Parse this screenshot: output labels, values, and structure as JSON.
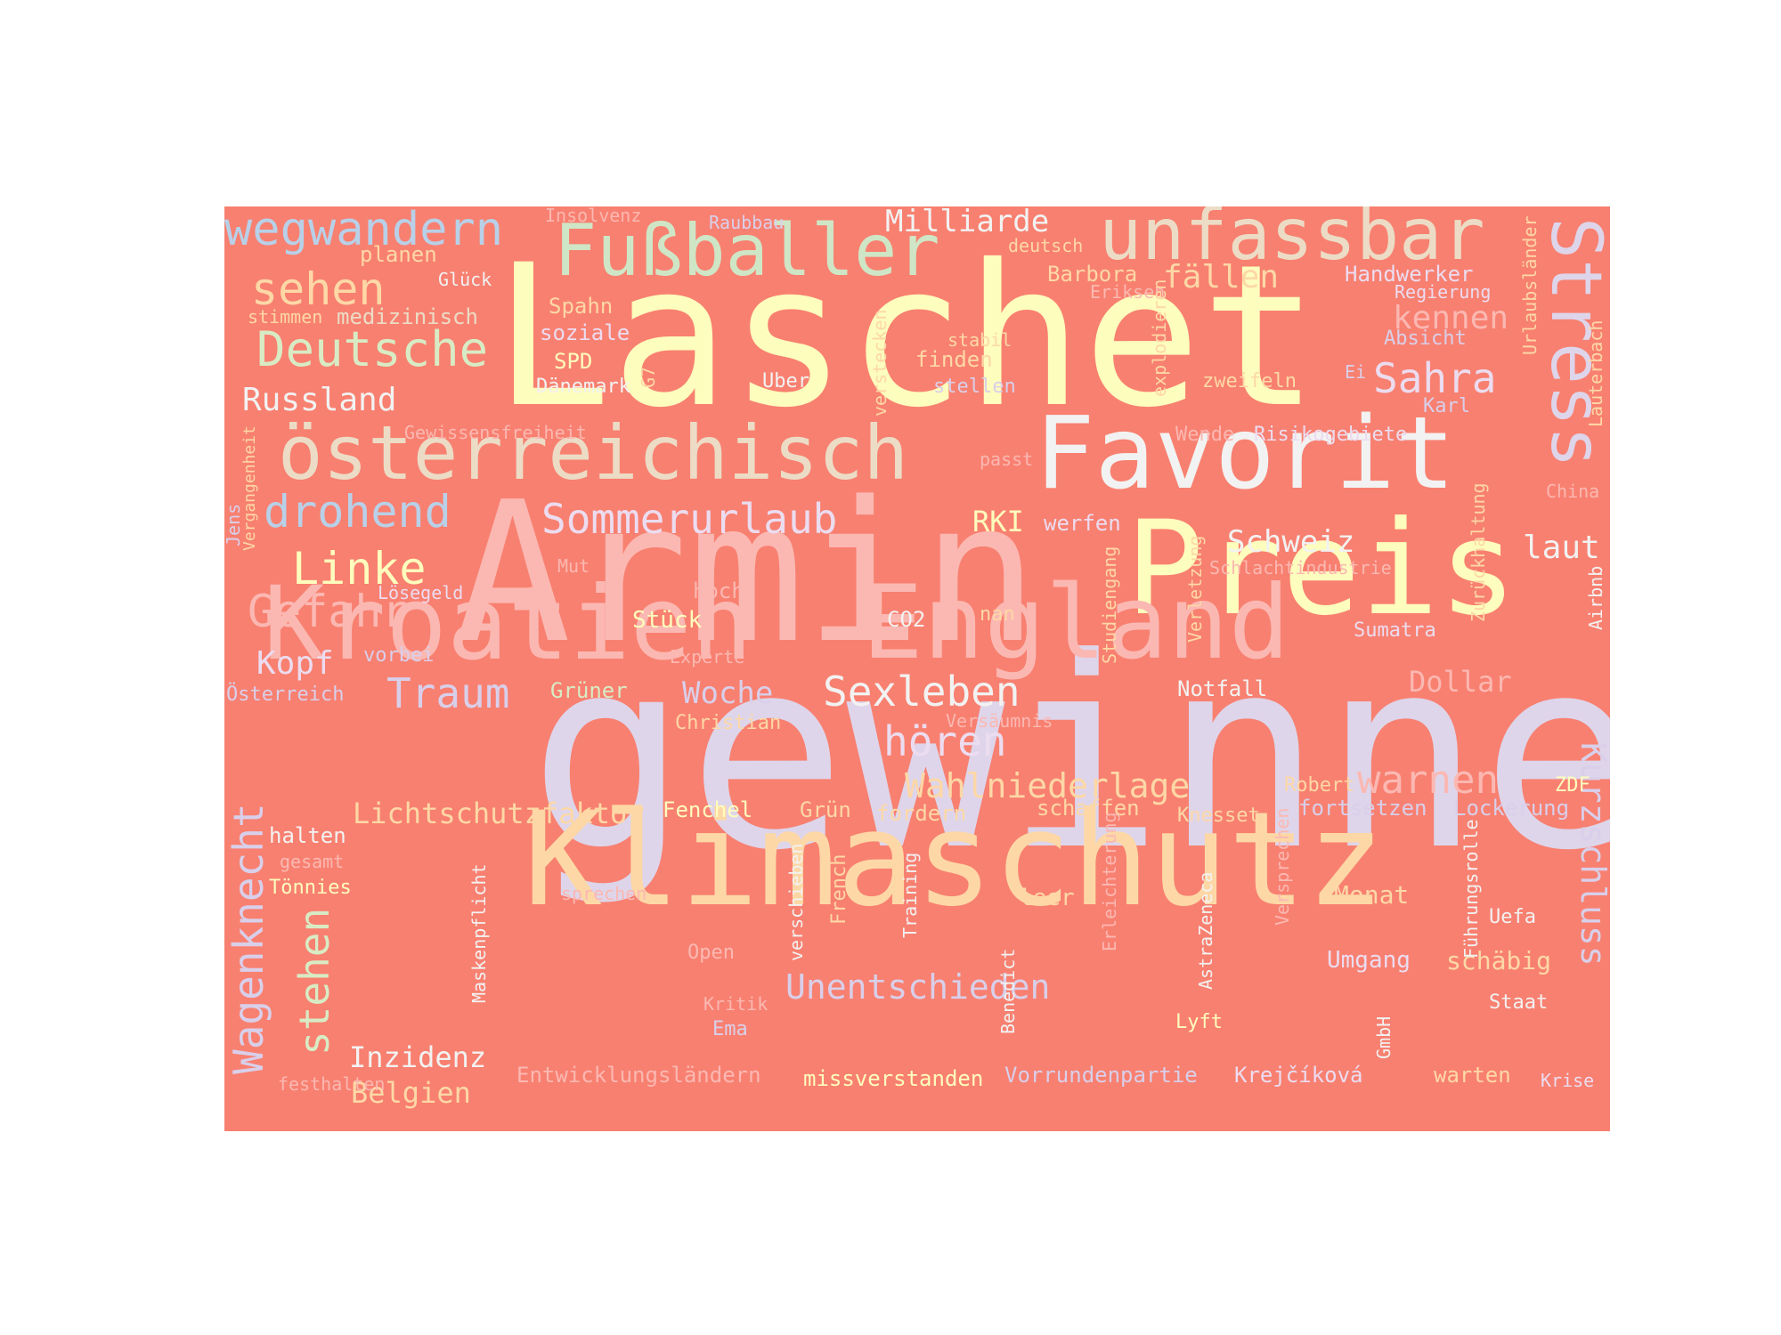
{
  "colors": {
    "background": "#ffffff",
    "cloud_background": "#f88070"
  },
  "words": [
    {
      "text": "gewinnen",
      "color": "#ded5ea"
    },
    {
      "text": "Laschet",
      "color": "#fdfdbd"
    },
    {
      "text": "Armin",
      "color": "#fbb8b2"
    },
    {
      "text": "Klimaschutz",
      "color": "#fdd8a6"
    },
    {
      "text": "Preis",
      "color": "#fdfdbd"
    },
    {
      "text": "Kroatien",
      "color": "#fbb8b2"
    },
    {
      "text": "England",
      "color": "#fbb8b2"
    },
    {
      "text": "Favorit",
      "color": "#f2f2f2"
    },
    {
      "text": "österreichisch",
      "color": "#ecdcc6"
    },
    {
      "text": "unfassbar",
      "color": "#ecdcc6"
    },
    {
      "text": "Fußballer",
      "color": "#cfe6c6"
    },
    {
      "text": "Stress",
      "color": "#ded5ea"
    },
    {
      "text": "wegwandern",
      "color": "#b8d0e8"
    },
    {
      "text": "Deutsche",
      "color": "#d8ebc4"
    },
    {
      "text": "sehen",
      "color": "#fdd8a6"
    },
    {
      "text": "drohend",
      "color": "#b8d0e8"
    },
    {
      "text": "Linke",
      "color": "#fdfdbd"
    },
    {
      "text": "Gefahr",
      "color": "#fbb8b2"
    },
    {
      "text": "Sommerurlaub",
      "color": "#ecdcf0"
    },
    {
      "text": "Sahra",
      "color": "#ecdcf0"
    },
    {
      "text": "Sexleben",
      "color": "#f2f2f2"
    },
    {
      "text": "Traum",
      "color": "#d9cfea"
    },
    {
      "text": "hören",
      "color": "#ecdcf0"
    },
    {
      "text": "Wahlniederlage",
      "color": "#fdd8a6"
    },
    {
      "text": "warnen",
      "color": "#fbb8b2"
    },
    {
      "text": "Wagenknecht",
      "color": "#d9cfea"
    },
    {
      "text": "stehen",
      "color": "#d8ebc4"
    },
    {
      "text": "Unentschieden",
      "color": "#d9cfea"
    },
    {
      "text": "Kurzschluss",
      "color": "#d9cfea"
    },
    {
      "text": "Russland",
      "color": "#f2f2f2"
    },
    {
      "text": "Milliarde",
      "color": "#f2f2f2"
    },
    {
      "text": "fällen",
      "color": "#fdd8a6"
    },
    {
      "text": "kennen",
      "color": "#fbb8b2"
    },
    {
      "text": "Schweiz",
      "color": "#f2f2f2"
    },
    {
      "text": "laut",
      "color": "#f2f2f2"
    },
    {
      "text": "Kopf",
      "color": "#ecdcf0"
    },
    {
      "text": "Woche",
      "color": "#d9cfea"
    },
    {
      "text": "Dollar",
      "color": "#fbb8b2"
    },
    {
      "text": "Lichtschutzfaktor",
      "color": "#fdd8a6"
    },
    {
      "text": "Inzidenz",
      "color": "#f2f2f2"
    },
    {
      "text": "Belgien",
      "color": "#fdd8a6"
    },
    {
      "text": "RKI",
      "color": "#fdfdbd"
    },
    {
      "text": "Barbora",
      "color": "#fdd8a6"
    },
    {
      "text": "Handwerker",
      "color": "#ecdcf0"
    },
    {
      "text": "medizinisch",
      "color": "#ecdcc6"
    },
    {
      "text": "Spahn",
      "color": "#fdd8a6"
    },
    {
      "text": "soziale",
      "color": "#ecdcf0"
    },
    {
      "text": "SPD",
      "color": "#fdfdbd"
    },
    {
      "text": "Dänemark",
      "color": "#f2f2f2"
    },
    {
      "text": "Uber",
      "color": "#f2f2f2"
    },
    {
      "text": "finden",
      "color": "#fdd8a6"
    },
    {
      "text": "stellen",
      "color": "#d9cfea"
    },
    {
      "text": "zweifeln",
      "color": "#fdd8a6"
    },
    {
      "text": "Absicht",
      "color": "#d9cfea"
    },
    {
      "text": "Karl",
      "color": "#d9cfea"
    },
    {
      "text": "Risikogebiete",
      "color": "#ecdcf0"
    },
    {
      "text": "werfen",
      "color": "#ecdcf0"
    },
    {
      "text": "Stück",
      "color": "#fdfdbd"
    },
    {
      "text": "CO2",
      "color": "#f2f2f2"
    },
    {
      "text": "nan",
      "color": "#fdd8a6"
    },
    {
      "text": "Sumatra",
      "color": "#ecdcf0"
    },
    {
      "text": "Notfall",
      "color": "#f2f2f2"
    },
    {
      "text": "Grüner",
      "color": "#d8ebc4"
    },
    {
      "text": "Christian",
      "color": "#fdd8a6"
    },
    {
      "text": "Fenchel",
      "color": "#fdfdbd"
    },
    {
      "text": "Grün",
      "color": "#fdd8a6"
    },
    {
      "text": "fordern",
      "color": "#fdd8a6"
    },
    {
      "text": "schaffen",
      "color": "#fdd8a6"
    },
    {
      "text": "Robert",
      "color": "#fdd8a6"
    },
    {
      "text": "ZDF",
      "color": "#fdfdbd"
    },
    {
      "text": "fortsetzen",
      "color": "#d9cfea"
    },
    {
      "text": "Lockerung",
      "color": "#d9cfea"
    },
    {
      "text": "Knesset",
      "color": "#fdd8a6"
    },
    {
      "text": "halten",
      "color": "#f2f2f2"
    },
    {
      "text": "Tönnies",
      "color": "#fdfdbd"
    },
    {
      "text": "Monat",
      "color": "#fdd8a6"
    },
    {
      "text": "Uefa",
      "color": "#f2f2f2"
    },
    {
      "text": "leer",
      "color": "#fdd8a6"
    },
    {
      "text": "Umgang",
      "color": "#ecdcf0"
    },
    {
      "text": "schäbig",
      "color": "#fdd8a6"
    },
    {
      "text": "Staat",
      "color": "#f2f2f2"
    },
    {
      "text": "Lyft",
      "color": "#fdfdbd"
    },
    {
      "text": "Krejčíková",
      "color": "#ecdcf0"
    },
    {
      "text": "warten",
      "color": "#fdd8a6"
    },
    {
      "text": "Krise",
      "color": "#ecdcf0"
    },
    {
      "text": "missverstanden",
      "color": "#fdfdbd"
    },
    {
      "text": "Vorrundenpartie",
      "color": "#d9cfea"
    },
    {
      "text": "Entwicklungsländern",
      "color": "#fbb8b2"
    },
    {
      "text": "Ema",
      "color": "#d9cfea"
    },
    {
      "text": "Kritik",
      "color": "#fbb8b2"
    },
    {
      "text": "Open",
      "color": "#fbb8b2"
    },
    {
      "text": "sprechen",
      "color": "#fbb8b2"
    },
    {
      "text": "gesamt",
      "color": "#fbb8b2"
    },
    {
      "text": "festhalten",
      "color": "#fbb8b2"
    },
    {
      "text": "Österreich",
      "color": "#d9cfea"
    },
    {
      "text": "vorbei",
      "color": "#d9cfea"
    },
    {
      "text": "Lösegeld",
      "color": "#ecdcf0"
    },
    {
      "text": "hoch",
      "color": "#fbb8b2"
    },
    {
      "text": "Experte",
      "color": "#fbb8b2"
    },
    {
      "text": "Versäumnis",
      "color": "#fbb8b2"
    },
    {
      "text": "Mut",
      "color": "#fbb8b2"
    },
    {
      "text": "Gewissensfreiheit",
      "color": "#fbb8b2"
    },
    {
      "text": "passt",
      "color": "#fbb8b2"
    },
    {
      "text": "Wende",
      "color": "#fbb8b2"
    },
    {
      "text": "Schlachtindustrie",
      "color": "#fbb8b2"
    },
    {
      "text": "China",
      "color": "#fbb8b2"
    },
    {
      "text": "Insolvenz",
      "color": "#fbb8b2"
    },
    {
      "text": "Raubbau",
      "color": "#d9cfea"
    },
    {
      "text": "deutsch",
      "color": "#fdd8a6"
    },
    {
      "text": "Eriksen",
      "color": "#fbb8b2"
    },
    {
      "text": "Regierung",
      "color": "#ecdcf0"
    },
    {
      "text": "planen",
      "color": "#fdd8a6"
    },
    {
      "text": "Glück",
      "color": "#f2f2f2"
    },
    {
      "text": "stimmen",
      "color": "#fdd8a6"
    },
    {
      "text": "stabil",
      "color": "#fdd8a6"
    },
    {
      "text": "Ei",
      "color": "#d9cfea"
    },
    {
      "text": "Urlaubsländer",
      "color": "#fdd8a6"
    },
    {
      "text": "Lauterbach",
      "color": "#fdd8a6"
    },
    {
      "text": "explodieren",
      "color": "#fdd8a6"
    },
    {
      "text": "verstecken",
      "color": "#fdd8a6"
    },
    {
      "text": "G7",
      "color": "#fdd8a6"
    },
    {
      "text": "Vergangenheit",
      "color": "#fdd8a6"
    },
    {
      "text": "Jens",
      "color": "#d9cfea"
    },
    {
      "text": "Zurückhaltung",
      "color": "#fdd8a6"
    },
    {
      "text": "Airbnb",
      "color": "#f2f2f2"
    },
    {
      "text": "Verletzung",
      "color": "#fdd8a6"
    },
    {
      "text": "Studiengang",
      "color": "#fdd8a6"
    },
    {
      "text": "Maskenpflicht",
      "color": "#f2f2f2"
    },
    {
      "text": "verschieben",
      "color": "#f2f2f2"
    },
    {
      "text": "French",
      "color": "#fdd8a6"
    },
    {
      "text": "Training",
      "color": "#f2f2f2"
    },
    {
      "text": "Benedict",
      "color": "#f2f2f2"
    },
    {
      "text": "Erleichterung",
      "color": "#fbb8b2"
    },
    {
      "text": "AstraZeneca",
      "color": "#f2f2f2"
    },
    {
      "text": "Versprechen",
      "color": "#fbb8b2"
    },
    {
      "text": "Führungsrolle",
      "color": "#f2f2f2"
    },
    {
      "text": "GmbH",
      "color": "#f2f2f2"
    }
  ]
}
